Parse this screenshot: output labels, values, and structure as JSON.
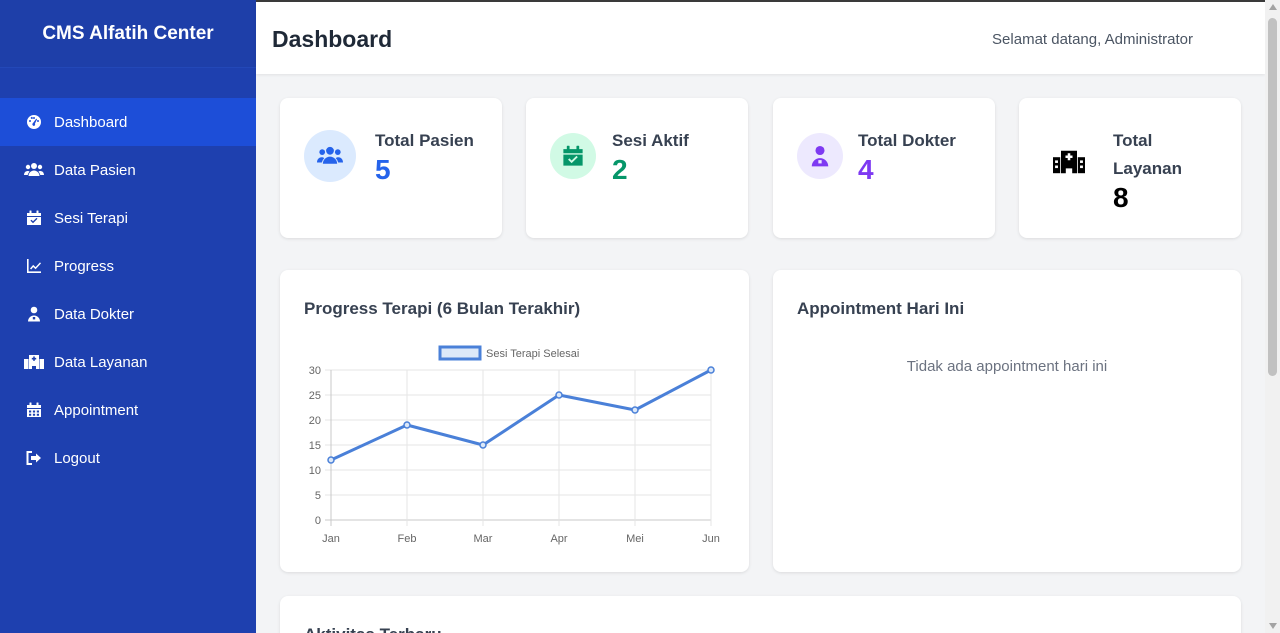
{
  "sidebar": {
    "brand": "CMS Alfatih Center",
    "items": [
      {
        "label": "Dashboard",
        "icon": "gauge-icon",
        "active": true
      },
      {
        "label": "Data Pasien",
        "icon": "users-icon"
      },
      {
        "label": "Sesi Terapi",
        "icon": "calendar-check-icon"
      },
      {
        "label": "Progress",
        "icon": "chart-line-icon"
      },
      {
        "label": "Data Dokter",
        "icon": "user-doctor-icon"
      },
      {
        "label": "Data Layanan",
        "icon": "hospital-icon"
      },
      {
        "label": "Appointment",
        "icon": "calendar-icon"
      },
      {
        "label": "Logout",
        "icon": "logout-icon"
      }
    ]
  },
  "header": {
    "title": "Dashboard",
    "welcome": "Selamat datang, Administrator"
  },
  "stats": [
    {
      "label": "Total Pasien",
      "value": "5",
      "icon": "users-icon",
      "color": "#2563eb",
      "bg": "#dbeafe"
    },
    {
      "label": "Sesi Aktif",
      "value": "2",
      "icon": "calendar-check-icon",
      "color": "#059669",
      "bg": "#d1fae5"
    },
    {
      "label": "Total Dokter",
      "value": "4",
      "icon": "user-doctor-icon",
      "color": "#7e3af2",
      "bg": "#ede9fe"
    },
    {
      "label": "Total Layanan",
      "value": "8",
      "icon": "hospital-icon",
      "color": "#000000"
    }
  ],
  "progress_card": {
    "title": "Progress Terapi (6 Bulan Terakhir)"
  },
  "appointment_card": {
    "title": "Appointment Hari Ini",
    "empty": "Tidak ada appointment hari ini"
  },
  "activity_card": {
    "title": "Aktivitas Terbaru"
  },
  "chart_data": {
    "type": "line",
    "categories": [
      "Jan",
      "Feb",
      "Mar",
      "Apr",
      "Mei",
      "Jun"
    ],
    "series": [
      {
        "name": "Sesi Terapi Selesai",
        "values": [
          12,
          19,
          15,
          25,
          22,
          30
        ],
        "color": "#4a80d8"
      }
    ],
    "ylim": [
      0,
      30
    ],
    "yticks": [
      0,
      5,
      10,
      15,
      20,
      25,
      30
    ],
    "grid": true,
    "legend": "top"
  }
}
